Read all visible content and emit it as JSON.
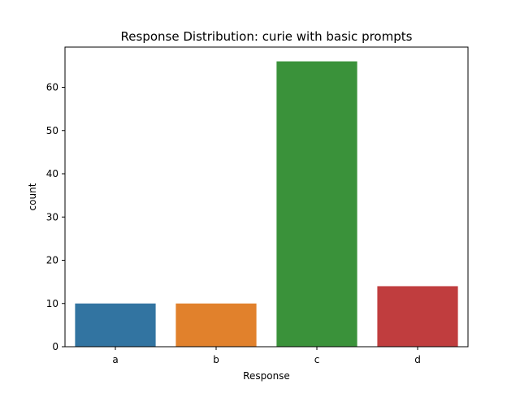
{
  "chart_data": {
    "type": "bar",
    "title": "Response Distribution: curie with basic prompts",
    "xlabel": "Response",
    "ylabel": "count",
    "categories": [
      "a",
      "b",
      "c",
      "d"
    ],
    "values": [
      10,
      10,
      66,
      14
    ],
    "colors": [
      "#3274a1",
      "#e1812c",
      "#3a923a",
      "#c03d3e"
    ],
    "ylim": [
      0,
      69.3
    ],
    "yticks": [
      0,
      10,
      20,
      30,
      40,
      50,
      60
    ],
    "grid": false,
    "legend": "none"
  }
}
